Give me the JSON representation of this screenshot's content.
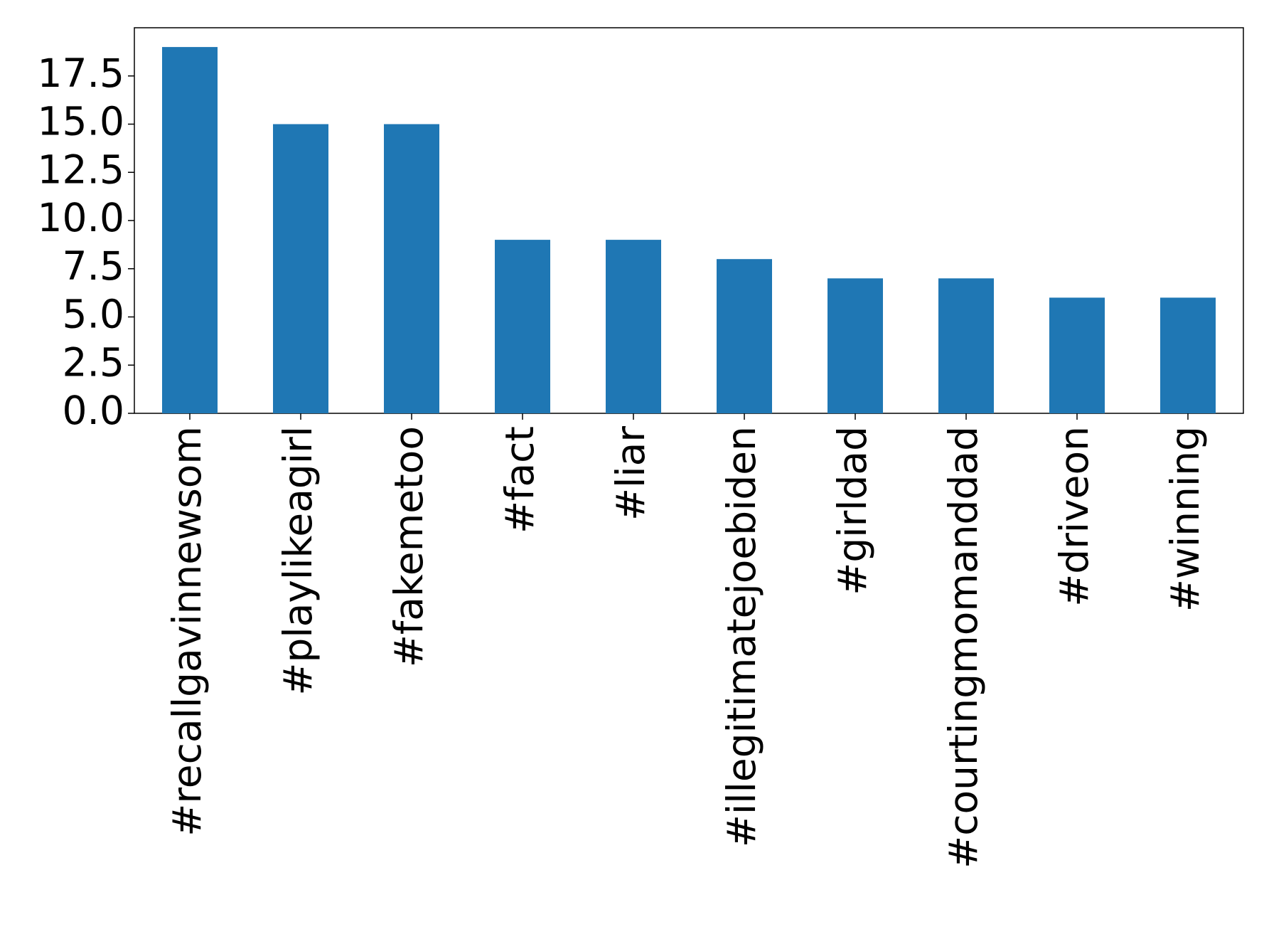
{
  "chart_data": {
    "type": "bar",
    "categories": [
      "#recallgavinnewsom",
      "#playlikeagirl",
      "#fakemetoo",
      "#fact",
      "#liar",
      "#illegitimatejoebiden",
      "#girldad",
      "#courtingmomanddad",
      "#driveon",
      "#winning"
    ],
    "values": [
      19,
      15,
      15,
      9,
      9,
      8,
      7,
      7,
      6,
      6
    ],
    "color": "#1f77b4",
    "ylim": [
      0,
      20
    ],
    "yticks": [
      {
        "value": 0,
        "label": "0.0"
      },
      2.5,
      {
        "value": 5,
        "label": "5.0"
      },
      7.5,
      {
        "value": 10,
        "label": "10.0"
      },
      12.5,
      {
        "value": 15,
        "label": "15.0"
      },
      17.5
    ],
    "grid": false
  }
}
